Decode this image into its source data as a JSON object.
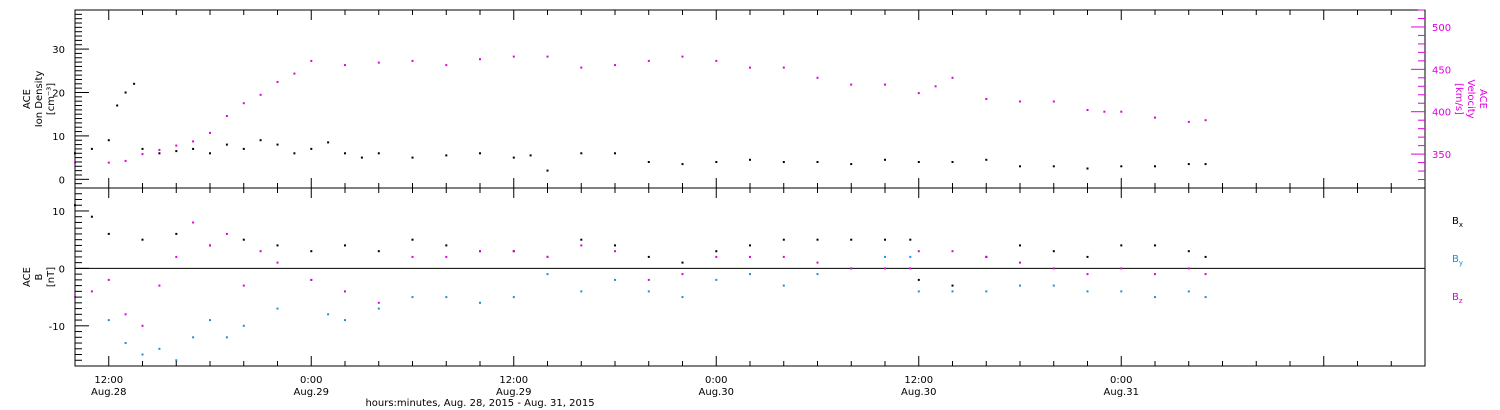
{
  "colors": {
    "black": "#000000",
    "magenta": "#e000e0",
    "blue": "#1a8fe0"
  },
  "x_axis": {
    "title": "hours:minutes, Aug. 28, 2015 - Aug. 31, 2015",
    "ticks": [
      {
        "hours": 12,
        "time": "12:00",
        "day": "Aug.28"
      },
      {
        "hours": 24,
        "time": "0:00",
        "day": "Aug.29"
      },
      {
        "hours": 36,
        "time": "12:00",
        "day": "Aug.29"
      },
      {
        "hours": 48,
        "time": "0:00",
        "day": "Aug.30"
      },
      {
        "hours": 60,
        "time": "12:00",
        "day": "Aug.30"
      },
      {
        "hours": 72,
        "time": "0:00",
        "day": "Aug.31"
      }
    ]
  },
  "chart_data": [
    {
      "type": "scatter",
      "panel": "top",
      "ylabel_left": [
        "ACE",
        "Ion Density",
        "[cm⁻³]"
      ],
      "ylabel_right": [
        "ACE",
        "Velocity",
        "[km/s]"
      ],
      "x_hours_range": [
        10.0,
        90.0
      ],
      "ylim_left": [
        -2,
        39
      ],
      "ylim_right": [
        310,
        520
      ],
      "yticks_left": [
        0,
        10,
        20,
        30
      ],
      "yticks_right": [
        350,
        400,
        450,
        500
      ],
      "series": [
        {
          "name": "",
          "axis": "left",
          "color": "#000000",
          "x": [
            10.0,
            11.0,
            12.0,
            12.5,
            13.0,
            13.5,
            14.0,
            15.0,
            16.0,
            17.0,
            18.0,
            19.0,
            20.0,
            21.0,
            22.0,
            23.0,
            24.0,
            25.0,
            26.0,
            27.0,
            28.0,
            30.0,
            32.0,
            34.0,
            36.0,
            37.0,
            38.0,
            40.0,
            42.0,
            44.0,
            46.0,
            48.0,
            50.0,
            52.0,
            54.0,
            56.0,
            58.0,
            60.0,
            62.0,
            64.0,
            66.0,
            68.0,
            70.0,
            72.0,
            74.0,
            76.0,
            77.0
          ],
          "y": [
            6.0,
            7.0,
            9.0,
            17.0,
            20.0,
            22.0,
            7.0,
            6.0,
            6.5,
            7.0,
            6.0,
            8.0,
            7.0,
            9.0,
            8.0,
            6.0,
            7.0,
            8.5,
            6.0,
            5.0,
            6.0,
            5.0,
            5.5,
            6.0,
            5.0,
            5.5,
            2.0,
            6.0,
            6.0,
            4.0,
            3.5,
            4.0,
            4.5,
            4.0,
            4.0,
            3.5,
            4.5,
            4.0,
            4.0,
            4.5,
            3.0,
            3.0,
            2.5,
            3.0,
            3.0,
            3.5,
            3.5
          ]
        },
        {
          "name": "",
          "axis": "right",
          "color": "#e000e0",
          "x": [
            10.0,
            12.0,
            13.0,
            14.0,
            15.0,
            16.0,
            17.0,
            18.0,
            19.0,
            20.0,
            21.0,
            22.0,
            23.0,
            24.0,
            26.0,
            28.0,
            30.0,
            32.0,
            34.0,
            36.0,
            38.0,
            40.0,
            42.0,
            44.0,
            46.0,
            48.0,
            50.0,
            52.0,
            54.0,
            56.0,
            58.0,
            60.0,
            61.0,
            62.0,
            64.0,
            66.0,
            68.0,
            70.0,
            71.0,
            72.0,
            74.0,
            76.0,
            77.0
          ],
          "y": [
            340,
            340,
            342,
            350,
            355,
            360,
            365,
            375,
            395,
            410,
            420,
            435,
            445,
            460,
            455,
            458,
            460,
            455,
            462,
            465,
            465,
            452,
            455,
            460,
            465,
            460,
            452,
            452,
            440,
            432,
            432,
            422,
            430,
            440,
            415,
            412,
            412,
            402,
            400,
            400,
            393,
            388,
            390
          ]
        }
      ]
    },
    {
      "type": "scatter",
      "panel": "bottom",
      "ylabel_left": [
        "ACE",
        "B",
        "[nT]"
      ],
      "x_hours_range": [
        10.0,
        90.0
      ],
      "ylim": [
        -17,
        14
      ],
      "yticks": [
        -10,
        0,
        10
      ],
      "series": [
        {
          "name": "Bx",
          "label_main": "B",
          "label_sub": "x",
          "color": "#000000",
          "x": [
            10.0,
            11.0,
            12.0,
            14.0,
            16.0,
            18.0,
            20.0,
            22.0,
            24.0,
            26.0,
            28.0,
            30.0,
            32.0,
            34.0,
            36.0,
            38.0,
            40.0,
            42.0,
            44.0,
            46.0,
            48.0,
            50.0,
            52.0,
            54.0,
            56.0,
            58.0,
            59.5,
            60.0,
            62.0,
            64.0,
            66.0,
            68.0,
            70.0,
            72.0,
            74.0,
            76.0,
            77.0
          ],
          "y": [
            11,
            9,
            6,
            5,
            6,
            4,
            5,
            4,
            3,
            4,
            3,
            5,
            4,
            3,
            3,
            2,
            5,
            4,
            2,
            1,
            3,
            4,
            5,
            5,
            5,
            5,
            5,
            -2,
            -3,
            2,
            4,
            3,
            2,
            4,
            4,
            3,
            2
          ]
        },
        {
          "name": "By",
          "label_main": "B",
          "label_sub": "y",
          "color": "#1a8fe0",
          "x": [
            10.0,
            12.0,
            13.0,
            14.0,
            15.0,
            16.0,
            17.0,
            18.0,
            19.0,
            20.0,
            22.0,
            24.0,
            25.0,
            26.0,
            28.0,
            30.0,
            32.0,
            34.0,
            36.0,
            38.0,
            40.0,
            42.0,
            44.0,
            46.0,
            48.0,
            50.0,
            52.0,
            54.0,
            56.0,
            58.0,
            59.5,
            60.0,
            62.0,
            64.0,
            66.0,
            68.0,
            70.0,
            72.0,
            74.0,
            76.0,
            77.0
          ],
          "y": [
            -5,
            -9,
            -13,
            -15,
            -14,
            -16,
            -12,
            -9,
            -12,
            -10,
            -7,
            -2,
            -8,
            -9,
            -7,
            -5,
            -5,
            -6,
            -5,
            -1,
            -4,
            -2,
            -4,
            -5,
            -2,
            -1,
            -3,
            -1,
            0,
            2,
            2,
            -4,
            -4,
            -4,
            -3,
            -3,
            -4,
            -4,
            -5,
            -4,
            -5
          ]
        },
        {
          "name": "Bz",
          "label_main": "B",
          "label_sub": "z",
          "color": "#e000e0",
          "x": [
            10.0,
            11.0,
            12.0,
            13.0,
            14.0,
            15.0,
            16.0,
            17.0,
            18.0,
            19.0,
            20.0,
            21.0,
            22.0,
            24.0,
            26.0,
            28.0,
            30.0,
            32.0,
            34.0,
            36.0,
            38.0,
            40.0,
            42.0,
            44.0,
            46.0,
            48.0,
            50.0,
            52.0,
            54.0,
            56.0,
            58.0,
            59.5,
            60.0,
            62.0,
            64.0,
            66.0,
            68.0,
            70.0,
            72.0,
            74.0,
            76.0,
            77.0
          ],
          "y": [
            -5,
            -4,
            -2,
            -8,
            -10,
            -3,
            2,
            8,
            4,
            6,
            -3,
            3,
            1,
            -2,
            -4,
            -6,
            2,
            2,
            3,
            3,
            2,
            4,
            3,
            -2,
            -1,
            2,
            2,
            2,
            1,
            0,
            0,
            0,
            3,
            3,
            2,
            1,
            0,
            -1,
            0,
            -1,
            0,
            -1
          ]
        }
      ]
    }
  ]
}
